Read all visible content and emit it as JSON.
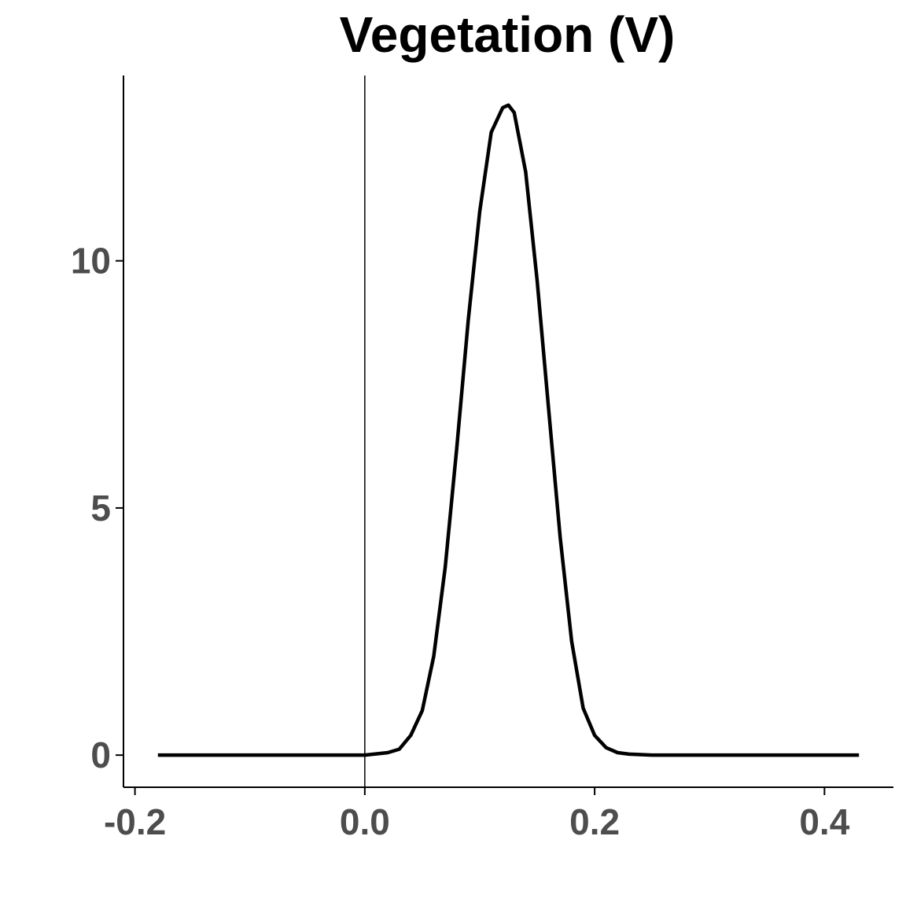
{
  "chart_data": {
    "type": "line",
    "title": "Vegetation (V)",
    "xlabel": "",
    "ylabel": "",
    "xlim": [
      -0.21,
      0.46
    ],
    "ylim": [
      -0.65,
      13.75
    ],
    "x_ticks": [
      -0.2,
      0.0,
      0.2,
      0.4
    ],
    "x_tick_labels": [
      "-0.2",
      "0.0",
      "0.2",
      "0.4"
    ],
    "y_ticks": [
      0,
      5,
      10
    ],
    "y_tick_labels": [
      "0",
      "5",
      "10"
    ],
    "reference_line_x": 0.0,
    "grid": false,
    "legend": "none",
    "series": [
      {
        "line_color": "#000000",
        "x": [
          -0.18,
          -0.1,
          0.0,
          0.02,
          0.03,
          0.04,
          0.05,
          0.06,
          0.07,
          0.08,
          0.09,
          0.1,
          0.11,
          0.12,
          0.125,
          0.13,
          0.14,
          0.15,
          0.16,
          0.17,
          0.18,
          0.19,
          0.2,
          0.21,
          0.22,
          0.23,
          0.24,
          0.25,
          0.3,
          0.35,
          0.43
        ],
        "y": [
          0,
          0,
          0,
          0.05,
          0.12,
          0.4,
          0.9,
          2.0,
          3.8,
          6.2,
          8.8,
          11.0,
          12.6,
          13.1,
          13.15,
          13.0,
          11.8,
          9.6,
          7.0,
          4.4,
          2.3,
          0.95,
          0.4,
          0.15,
          0.05,
          0.02,
          0.01,
          0,
          0,
          0,
          0
        ]
      }
    ]
  }
}
